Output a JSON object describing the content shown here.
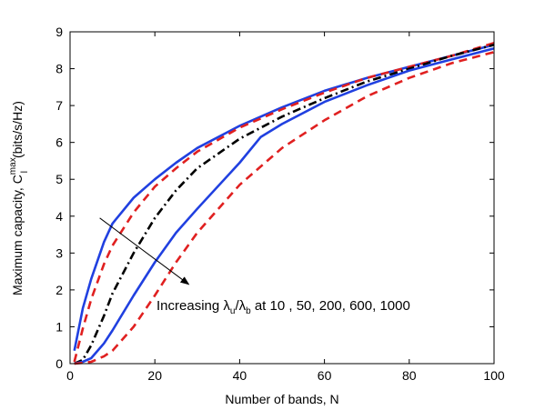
{
  "chart_data": {
    "type": "line",
    "xlabel": "Number of bands, N",
    "ylabel": {
      "main": "Maximum capacity, C",
      "superscript": "max",
      "subscript": "l",
      "unit": "(bits/s/Hz)"
    },
    "xlim": [
      0,
      100
    ],
    "ylim": [
      0,
      9
    ],
    "xticks": [
      "0",
      "20",
      "40",
      "60",
      "80",
      "100"
    ],
    "yticks": [
      "0",
      "1",
      "2",
      "3",
      "4",
      "5",
      "6",
      "7",
      "8",
      "9"
    ],
    "grid": false,
    "legend": "none",
    "annotation": {
      "prefix": "Increasing ",
      "lambda_u": "λ",
      "sub_u": "u",
      "slash": "/",
      "lambda_b": "λ",
      "sub_b": "b",
      "suffix": " at 10 , 50, 200, 600, 1000",
      "arrow_from": [
        7,
        3.95
      ],
      "arrow_to": [
        28,
        2.15
      ]
    },
    "series": [
      {
        "color": "#2040e0",
        "dash": "solid",
        "x": [
          1,
          3,
          5,
          8,
          10,
          15,
          20,
          25,
          30,
          40,
          50,
          60,
          70,
          80,
          90,
          100
        ],
        "y": [
          0.35,
          1.5,
          2.3,
          3.3,
          3.8,
          4.5,
          5.0,
          5.45,
          5.85,
          6.45,
          6.95,
          7.4,
          7.75,
          8.05,
          8.35,
          8.65
        ]
      },
      {
        "color": "#e02020",
        "dash": "dashed",
        "x": [
          1,
          3,
          5,
          8,
          10,
          15,
          20,
          25,
          30,
          40,
          50,
          60,
          70,
          80,
          90,
          100
        ],
        "y": [
          0.05,
          0.95,
          1.75,
          2.7,
          3.2,
          4.1,
          4.8,
          5.3,
          5.75,
          6.4,
          6.9,
          7.35,
          7.75,
          8.05,
          8.35,
          8.7
        ]
      },
      {
        "color": "#000000",
        "dash": "dashdot",
        "x": [
          1,
          3,
          5,
          8,
          10,
          15,
          20,
          25,
          30,
          40,
          50,
          60,
          70,
          80,
          90,
          100
        ],
        "y": [
          0.0,
          0.1,
          0.5,
          1.3,
          1.9,
          3.0,
          3.95,
          4.7,
          5.3,
          6.1,
          6.7,
          7.2,
          7.65,
          8.0,
          8.35,
          8.65
        ]
      },
      {
        "color": "#2040e0",
        "dash": "solid",
        "x": [
          1,
          3,
          5,
          8,
          10,
          15,
          20,
          25,
          30,
          40,
          45,
          50,
          60,
          70,
          80,
          90,
          100
        ],
        "y": [
          0.0,
          0.05,
          0.15,
          0.55,
          0.9,
          1.85,
          2.75,
          3.55,
          4.2,
          5.45,
          6.15,
          6.5,
          7.1,
          7.55,
          7.95,
          8.25,
          8.55
        ]
      },
      {
        "color": "#e02020",
        "dash": "dashed",
        "x": [
          1,
          3,
          5,
          8,
          10,
          15,
          20,
          25,
          30,
          40,
          50,
          60,
          70,
          80,
          90,
          100
        ],
        "y": [
          0.0,
          0.02,
          0.05,
          0.2,
          0.35,
          1.0,
          1.85,
          2.75,
          3.55,
          4.85,
          5.85,
          6.6,
          7.25,
          7.75,
          8.15,
          8.45
        ]
      }
    ]
  }
}
